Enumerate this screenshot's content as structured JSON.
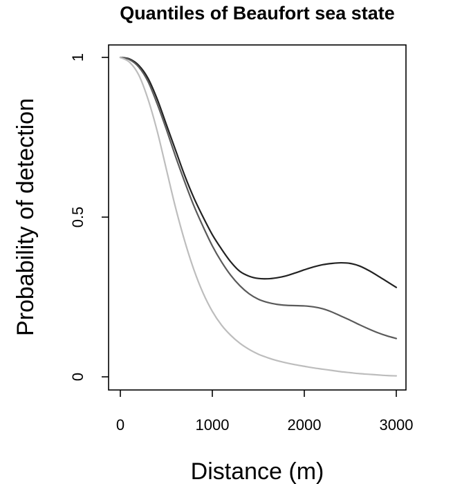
{
  "chart_data": {
    "type": "line",
    "title": "Quantiles of Beaufort sea state",
    "xlabel": "Distance (m)",
    "ylabel": "Probability of detection",
    "xlim": [
      0,
      3000
    ],
    "ylim": [
      0,
      1
    ],
    "xticks": [
      0,
      1000,
      2000,
      3000
    ],
    "xtick_labels": [
      "0",
      "1000",
      "2000",
      "3000"
    ],
    "yticks": [
      0,
      0.5,
      1
    ],
    "ytick_labels": [
      "0",
      "0.5",
      "1"
    ],
    "grid": false,
    "legend": "none",
    "x": [
      0,
      100,
      200,
      300,
      400,
      500,
      600,
      700,
      800,
      900,
      1000,
      1100,
      1200,
      1300,
      1400,
      1500,
      1600,
      1700,
      1800,
      1900,
      2000,
      2100,
      2200,
      2300,
      2400,
      2500,
      2600,
      2700,
      2800,
      2900,
      3000
    ],
    "series": [
      {
        "color": "#222222",
        "values": [
          1.0,
          0.995,
          0.975,
          0.935,
          0.87,
          0.79,
          0.71,
          0.63,
          0.56,
          0.5,
          0.445,
          0.4,
          0.36,
          0.33,
          0.315,
          0.308,
          0.307,
          0.31,
          0.316,
          0.325,
          0.335,
          0.344,
          0.351,
          0.355,
          0.357,
          0.355,
          0.347,
          0.333,
          0.316,
          0.298,
          0.28
        ]
      },
      {
        "color": "#5a5a5a",
        "values": [
          1.0,
          0.993,
          0.97,
          0.925,
          0.855,
          0.775,
          0.69,
          0.61,
          0.535,
          0.47,
          0.41,
          0.36,
          0.318,
          0.285,
          0.26,
          0.243,
          0.233,
          0.227,
          0.224,
          0.223,
          0.222,
          0.219,
          0.213,
          0.203,
          0.19,
          0.177,
          0.163,
          0.15,
          0.138,
          0.128,
          0.12
        ]
      },
      {
        "color": "#bdbdbd",
        "values": [
          1.0,
          0.985,
          0.945,
          0.87,
          0.77,
          0.65,
          0.53,
          0.425,
          0.335,
          0.262,
          0.205,
          0.162,
          0.13,
          0.105,
          0.086,
          0.071,
          0.06,
          0.051,
          0.044,
          0.038,
          0.033,
          0.028,
          0.024,
          0.02,
          0.016,
          0.013,
          0.01,
          0.008,
          0.006,
          0.004,
          0.003
        ]
      }
    ]
  }
}
